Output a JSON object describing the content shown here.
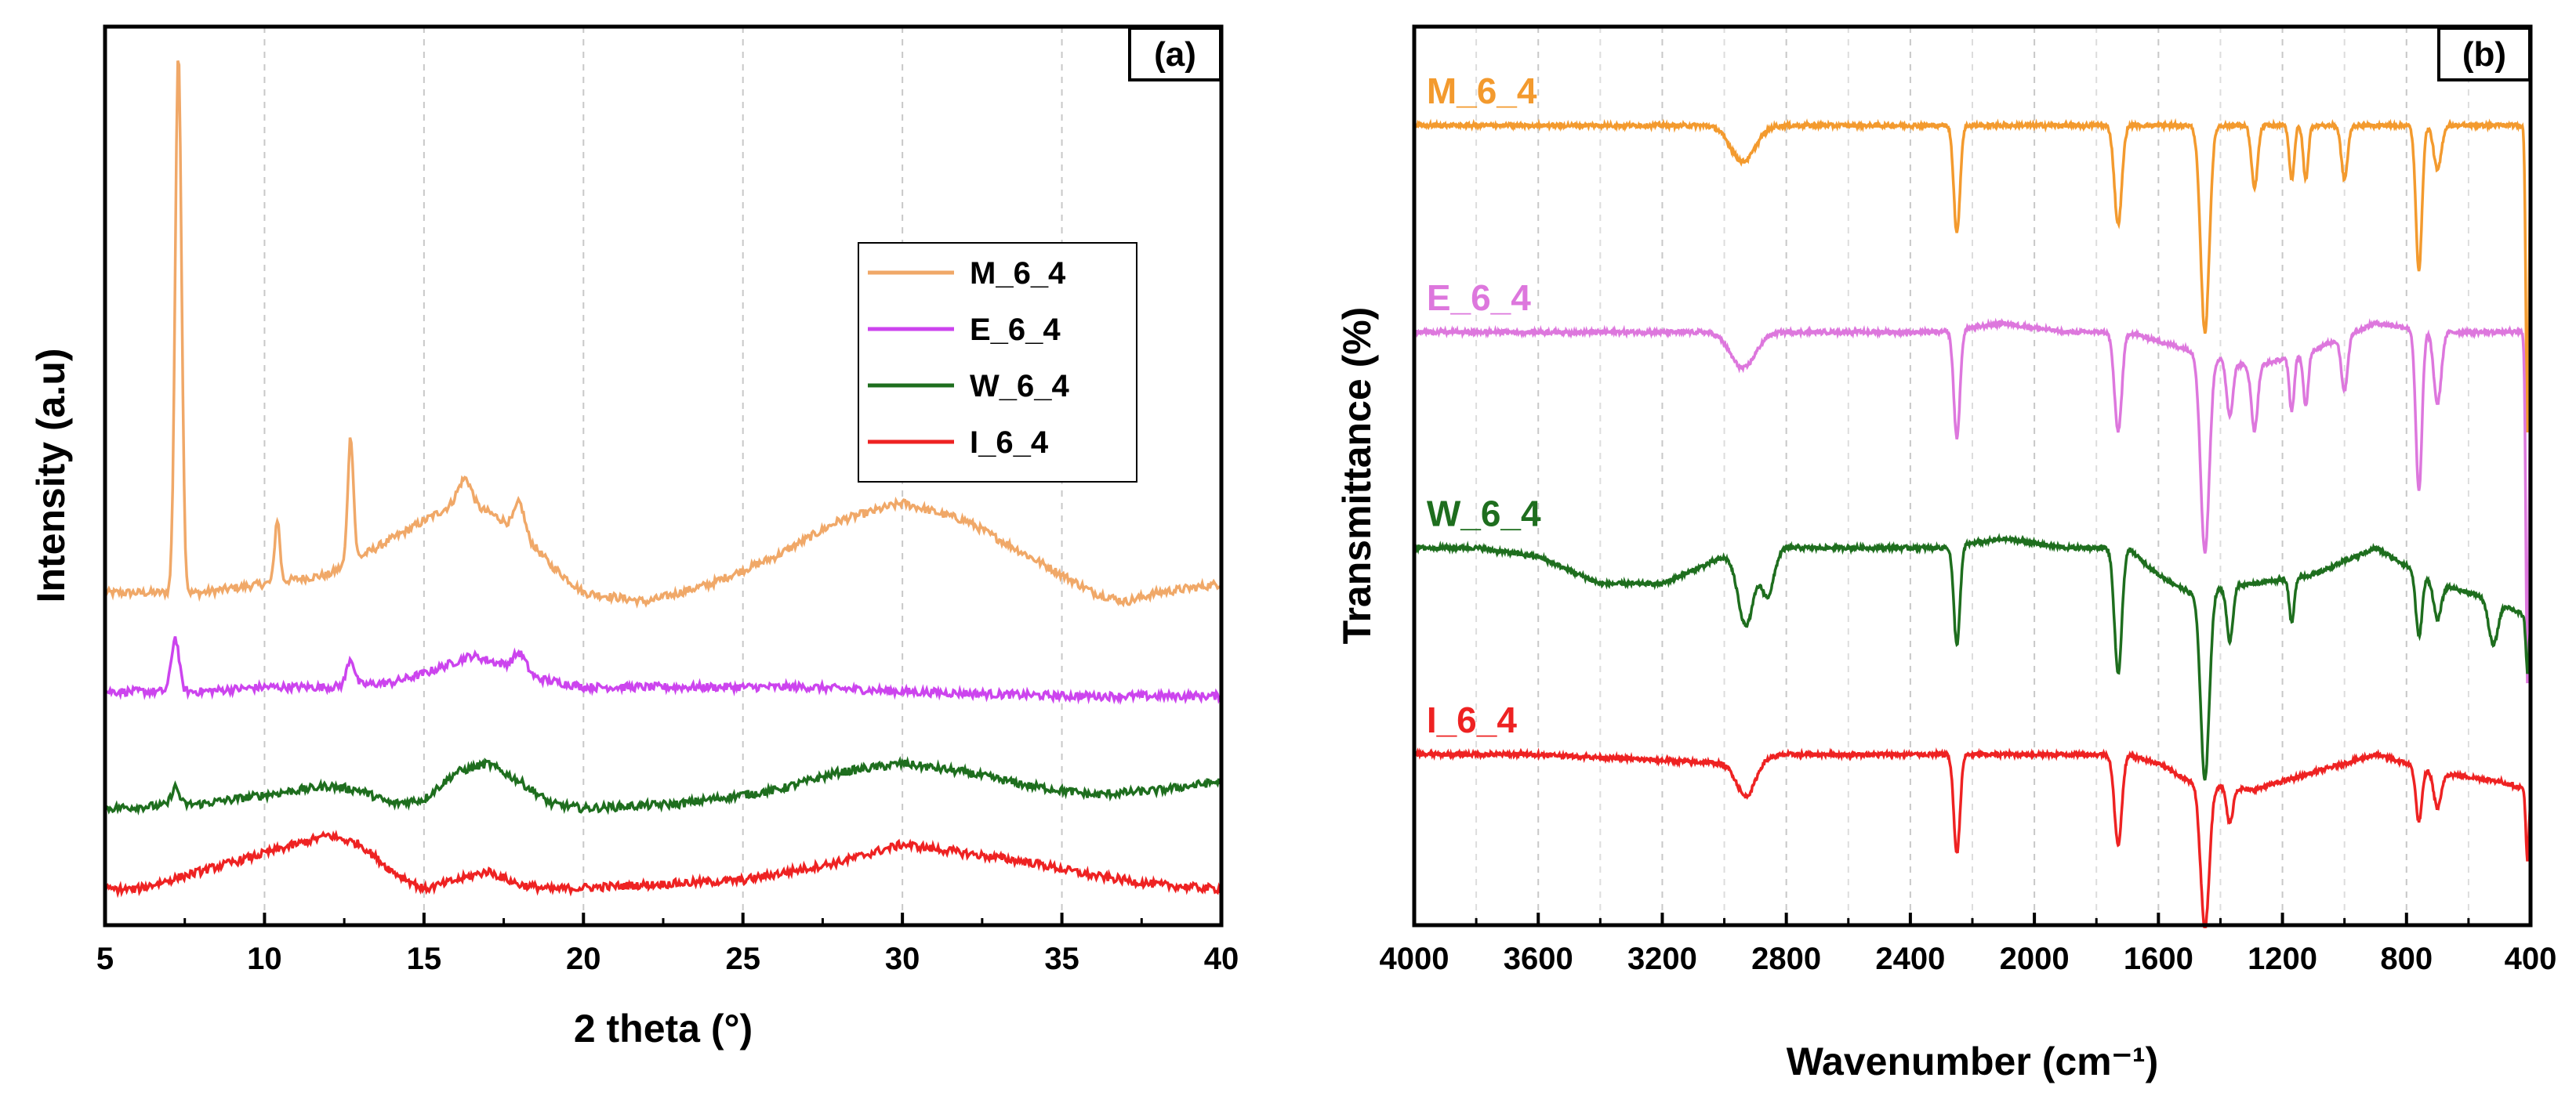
{
  "chart_data": [
    {
      "type": "line",
      "panel_label": "(a)",
      "xlabel": "2 theta (°)",
      "ylabel": "Intensity (a.u)",
      "xlim": [
        5,
        40
      ],
      "ylim": [
        0,
        100
      ],
      "xticks": [
        5,
        10,
        15,
        20,
        25,
        30,
        35,
        40
      ],
      "tick_labels": [
        "5",
        "10",
        "15",
        "20",
        "25",
        "30",
        "35",
        "40"
      ],
      "grid": "vertical dashed",
      "legend": "center-right",
      "legend_entries": [
        "M_6_4",
        "E_6_4",
        "W_6_4",
        "I_6_4"
      ],
      "series": [
        {
          "name": "M_6_4",
          "color": "#f0a868",
          "baseline": 37,
          "background": [
            [
              5,
              0
            ],
            [
              8,
              0
            ],
            [
              10,
              1
            ],
            [
              12,
              2
            ],
            [
              14,
              6
            ],
            [
              16,
              10
            ],
            [
              17,
              9
            ],
            [
              18,
              7
            ],
            [
              19,
              3
            ],
            [
              20,
              0
            ],
            [
              22,
              -1
            ],
            [
              24,
              1
            ],
            [
              26,
              4
            ],
            [
              28,
              8
            ],
            [
              30,
              10
            ],
            [
              32,
              8
            ],
            [
              34,
              4
            ],
            [
              36,
              0
            ],
            [
              37,
              -1
            ],
            [
              38,
              0
            ],
            [
              40,
              1
            ]
          ],
          "peaks": [
            [
              7.3,
              60,
              0.1
            ],
            [
              10.4,
              7,
              0.08
            ],
            [
              12.7,
              14,
              0.09
            ],
            [
              16.3,
              3,
              0.2
            ],
            [
              18.0,
              3,
              0.15
            ]
          ]
        },
        {
          "name": "E_6_4",
          "color": "#cc44ee",
          "baseline": 26,
          "background": [
            [
              5,
              0
            ],
            [
              8,
              0
            ],
            [
              10,
              0.5
            ],
            [
              12,
              0.5
            ],
            [
              14,
              1
            ],
            [
              15,
              2
            ],
            [
              16.5,
              4
            ],
            [
              17.5,
              3
            ],
            [
              18.5,
              1.5
            ],
            [
              20,
              0.5
            ],
            [
              25,
              0.5
            ],
            [
              27,
              0.5
            ],
            [
              30,
              0
            ],
            [
              35,
              -0.5
            ],
            [
              40,
              -0.5
            ]
          ],
          "peaks": [
            [
              7.2,
              6,
              0.12
            ],
            [
              12.7,
              3,
              0.12
            ],
            [
              18.0,
              2,
              0.2
            ]
          ]
        },
        {
          "name": "W_6_4",
          "color": "#1e6e1e",
          "baseline": 13,
          "background": [
            [
              5,
              0
            ],
            [
              8,
              0.5
            ],
            [
              10,
              1.5
            ],
            [
              12,
              2.5
            ],
            [
              13,
              2
            ],
            [
              14,
              0.5
            ],
            [
              15,
              1
            ],
            [
              16,
              4
            ],
            [
              17,
              5
            ],
            [
              18,
              3
            ],
            [
              19,
              0.5
            ],
            [
              20,
              0
            ],
            [
              23,
              0.5
            ],
            [
              26,
              2
            ],
            [
              28,
              4
            ],
            [
              30,
              5
            ],
            [
              32,
              4
            ],
            [
              34,
              2.5
            ],
            [
              36,
              1.5
            ],
            [
              38,
              2
            ],
            [
              40,
              3
            ]
          ],
          "peaks": [
            [
              7.2,
              2,
              0.12
            ]
          ]
        },
        {
          "name": "I_6_4",
          "color": "#ee2222",
          "baseline": 4,
          "background": [
            [
              5,
              0
            ],
            [
              6,
              0
            ],
            [
              8,
              2
            ],
            [
              10,
              4
            ],
            [
              12,
              6
            ],
            [
              13,
              5
            ],
            [
              14,
              2
            ],
            [
              15,
              0
            ],
            [
              16,
              1
            ],
            [
              17,
              2
            ],
            [
              18,
              0.5
            ],
            [
              19,
              0
            ],
            [
              22,
              0.5
            ],
            [
              25,
              1
            ],
            [
              28,
              3
            ],
            [
              30,
              5
            ],
            [
              32,
              4
            ],
            [
              34,
              3
            ],
            [
              36,
              1.5
            ],
            [
              38,
              0.5
            ],
            [
              40,
              0
            ]
          ],
          "peaks": []
        }
      ]
    },
    {
      "type": "line",
      "panel_label": "(b)",
      "xlabel": "Wavenumber (cm⁻¹)",
      "ylabel": "Transmittance (%)",
      "xlim": [
        4000,
        400
      ],
      "ylim": [
        0,
        100
      ],
      "xticks": [
        4000,
        3600,
        3200,
        2800,
        2400,
        2000,
        1600,
        1200,
        800,
        400
      ],
      "tick_labels": [
        "4000",
        "3600",
        "3200",
        "2800",
        "2400",
        "2000",
        "1600",
        "1200",
        "800",
        "400"
      ],
      "grid": "vertical dashed",
      "legend": "series labels at left of each trace",
      "series": [
        {
          "name": "M_6_4",
          "label": "M_6_4",
          "color": "#f39a2e",
          "baseline": 89,
          "background": [
            [
              4000,
              0
            ],
            [
              3000,
              0
            ],
            [
              2800,
              0
            ],
            [
              2600,
              0
            ],
            [
              2300,
              0
            ],
            [
              2100,
              0
            ],
            [
              1900,
              0
            ],
            [
              1700,
              0
            ],
            [
              1600,
              0
            ],
            [
              1500,
              0
            ],
            [
              1300,
              0
            ],
            [
              1100,
              0
            ],
            [
              900,
              0
            ],
            [
              700,
              0
            ],
            [
              500,
              0
            ],
            [
              400,
              0
            ]
          ],
          "bands": [
            [
              2940,
              -4,
              40
            ],
            [
              2250,
              -12,
              10
            ],
            [
              1730,
              -11,
              12
            ],
            [
              1450,
              -23,
              14
            ],
            [
              1290,
              -7,
              10
            ],
            [
              1170,
              -6,
              8
            ],
            [
              1125,
              -6,
              8
            ],
            [
              1000,
              -6,
              10
            ],
            [
              760,
              -16,
              10
            ],
            [
              700,
              -5,
              12
            ],
            [
              410,
              -34,
              5
            ]
          ]
        },
        {
          "name": "E_6_4",
          "label": "E_6_4",
          "color": "#dd77dd",
          "baseline": 66,
          "background": [
            [
              4000,
              0
            ],
            [
              3000,
              0
            ],
            [
              2800,
              0
            ],
            [
              2300,
              0
            ],
            [
              2100,
              1
            ],
            [
              1900,
              0
            ],
            [
              1700,
              0
            ],
            [
              1500,
              -2
            ],
            [
              1300,
              -4
            ],
            [
              1100,
              -2
            ],
            [
              900,
              1
            ],
            [
              700,
              0
            ],
            [
              500,
              0
            ],
            [
              400,
              0
            ]
          ],
          "bands": [
            [
              2940,
              -4,
              40
            ],
            [
              2250,
              -12,
              10
            ],
            [
              1730,
              -11,
              12
            ],
            [
              1450,
              -22,
              14
            ],
            [
              1370,
              -6,
              10
            ],
            [
              1290,
              -7,
              10
            ],
            [
              1170,
              -6,
              8
            ],
            [
              1125,
              -6,
              8
            ],
            [
              1000,
              -6,
              10
            ],
            [
              760,
              -18,
              10
            ],
            [
              700,
              -8,
              12
            ],
            [
              410,
              -39,
              5
            ]
          ]
        },
        {
          "name": "W_6_4",
          "label": "W_6_4",
          "color": "#1e6e1e",
          "baseline": 42,
          "background": [
            [
              4000,
              0
            ],
            [
              3800,
              0
            ],
            [
              3600,
              -1
            ],
            [
              3400,
              -4
            ],
            [
              3200,
              -4
            ],
            [
              3000,
              -1
            ],
            [
              2800,
              0
            ],
            [
              2300,
              0
            ],
            [
              2100,
              1
            ],
            [
              1900,
              0
            ],
            [
              1700,
              0
            ],
            [
              1600,
              -3
            ],
            [
              1500,
              -5
            ],
            [
              1300,
              -4
            ],
            [
              1100,
              -3
            ],
            [
              900,
              0
            ],
            [
              700,
              -4
            ],
            [
              500,
              -6
            ],
            [
              400,
              -8
            ]
          ],
          "bands": [
            [
              2930,
              -8,
              25
            ],
            [
              2860,
              -5,
              20
            ],
            [
              2250,
              -11,
              10
            ],
            [
              1730,
              -14,
              12
            ],
            [
              1450,
              -21,
              14
            ],
            [
              1370,
              -6,
              10
            ],
            [
              1170,
              -5,
              8
            ],
            [
              760,
              -7,
              10
            ],
            [
              700,
              -4,
              12
            ],
            [
              520,
              -5,
              15
            ],
            [
              410,
              -6,
              5
            ]
          ]
        },
        {
          "name": "I_6_4",
          "label": "I_6_4",
          "color": "#ee2222",
          "baseline": 19,
          "background": [
            [
              4000,
              0
            ],
            [
              3600,
              0
            ],
            [
              3000,
              -1
            ],
            [
              2800,
              0
            ],
            [
              2300,
              0
            ],
            [
              2100,
              0
            ],
            [
              1900,
              0
            ],
            [
              1700,
              0
            ],
            [
              1600,
              -1
            ],
            [
              1500,
              -3
            ],
            [
              1300,
              -4
            ],
            [
              1100,
              -2
            ],
            [
              900,
              0
            ],
            [
              700,
              -2
            ],
            [
              500,
              -3
            ],
            [
              400,
              -4
            ]
          ],
          "bands": [
            [
              2930,
              -4,
              30
            ],
            [
              2250,
              -11,
              10
            ],
            [
              1730,
              -10,
              12
            ],
            [
              1450,
              -16,
              14
            ],
            [
              1370,
              -4,
              10
            ],
            [
              760,
              -6,
              10
            ],
            [
              700,
              -4,
              12
            ],
            [
              410,
              -8,
              5
            ]
          ]
        }
      ]
    }
  ]
}
